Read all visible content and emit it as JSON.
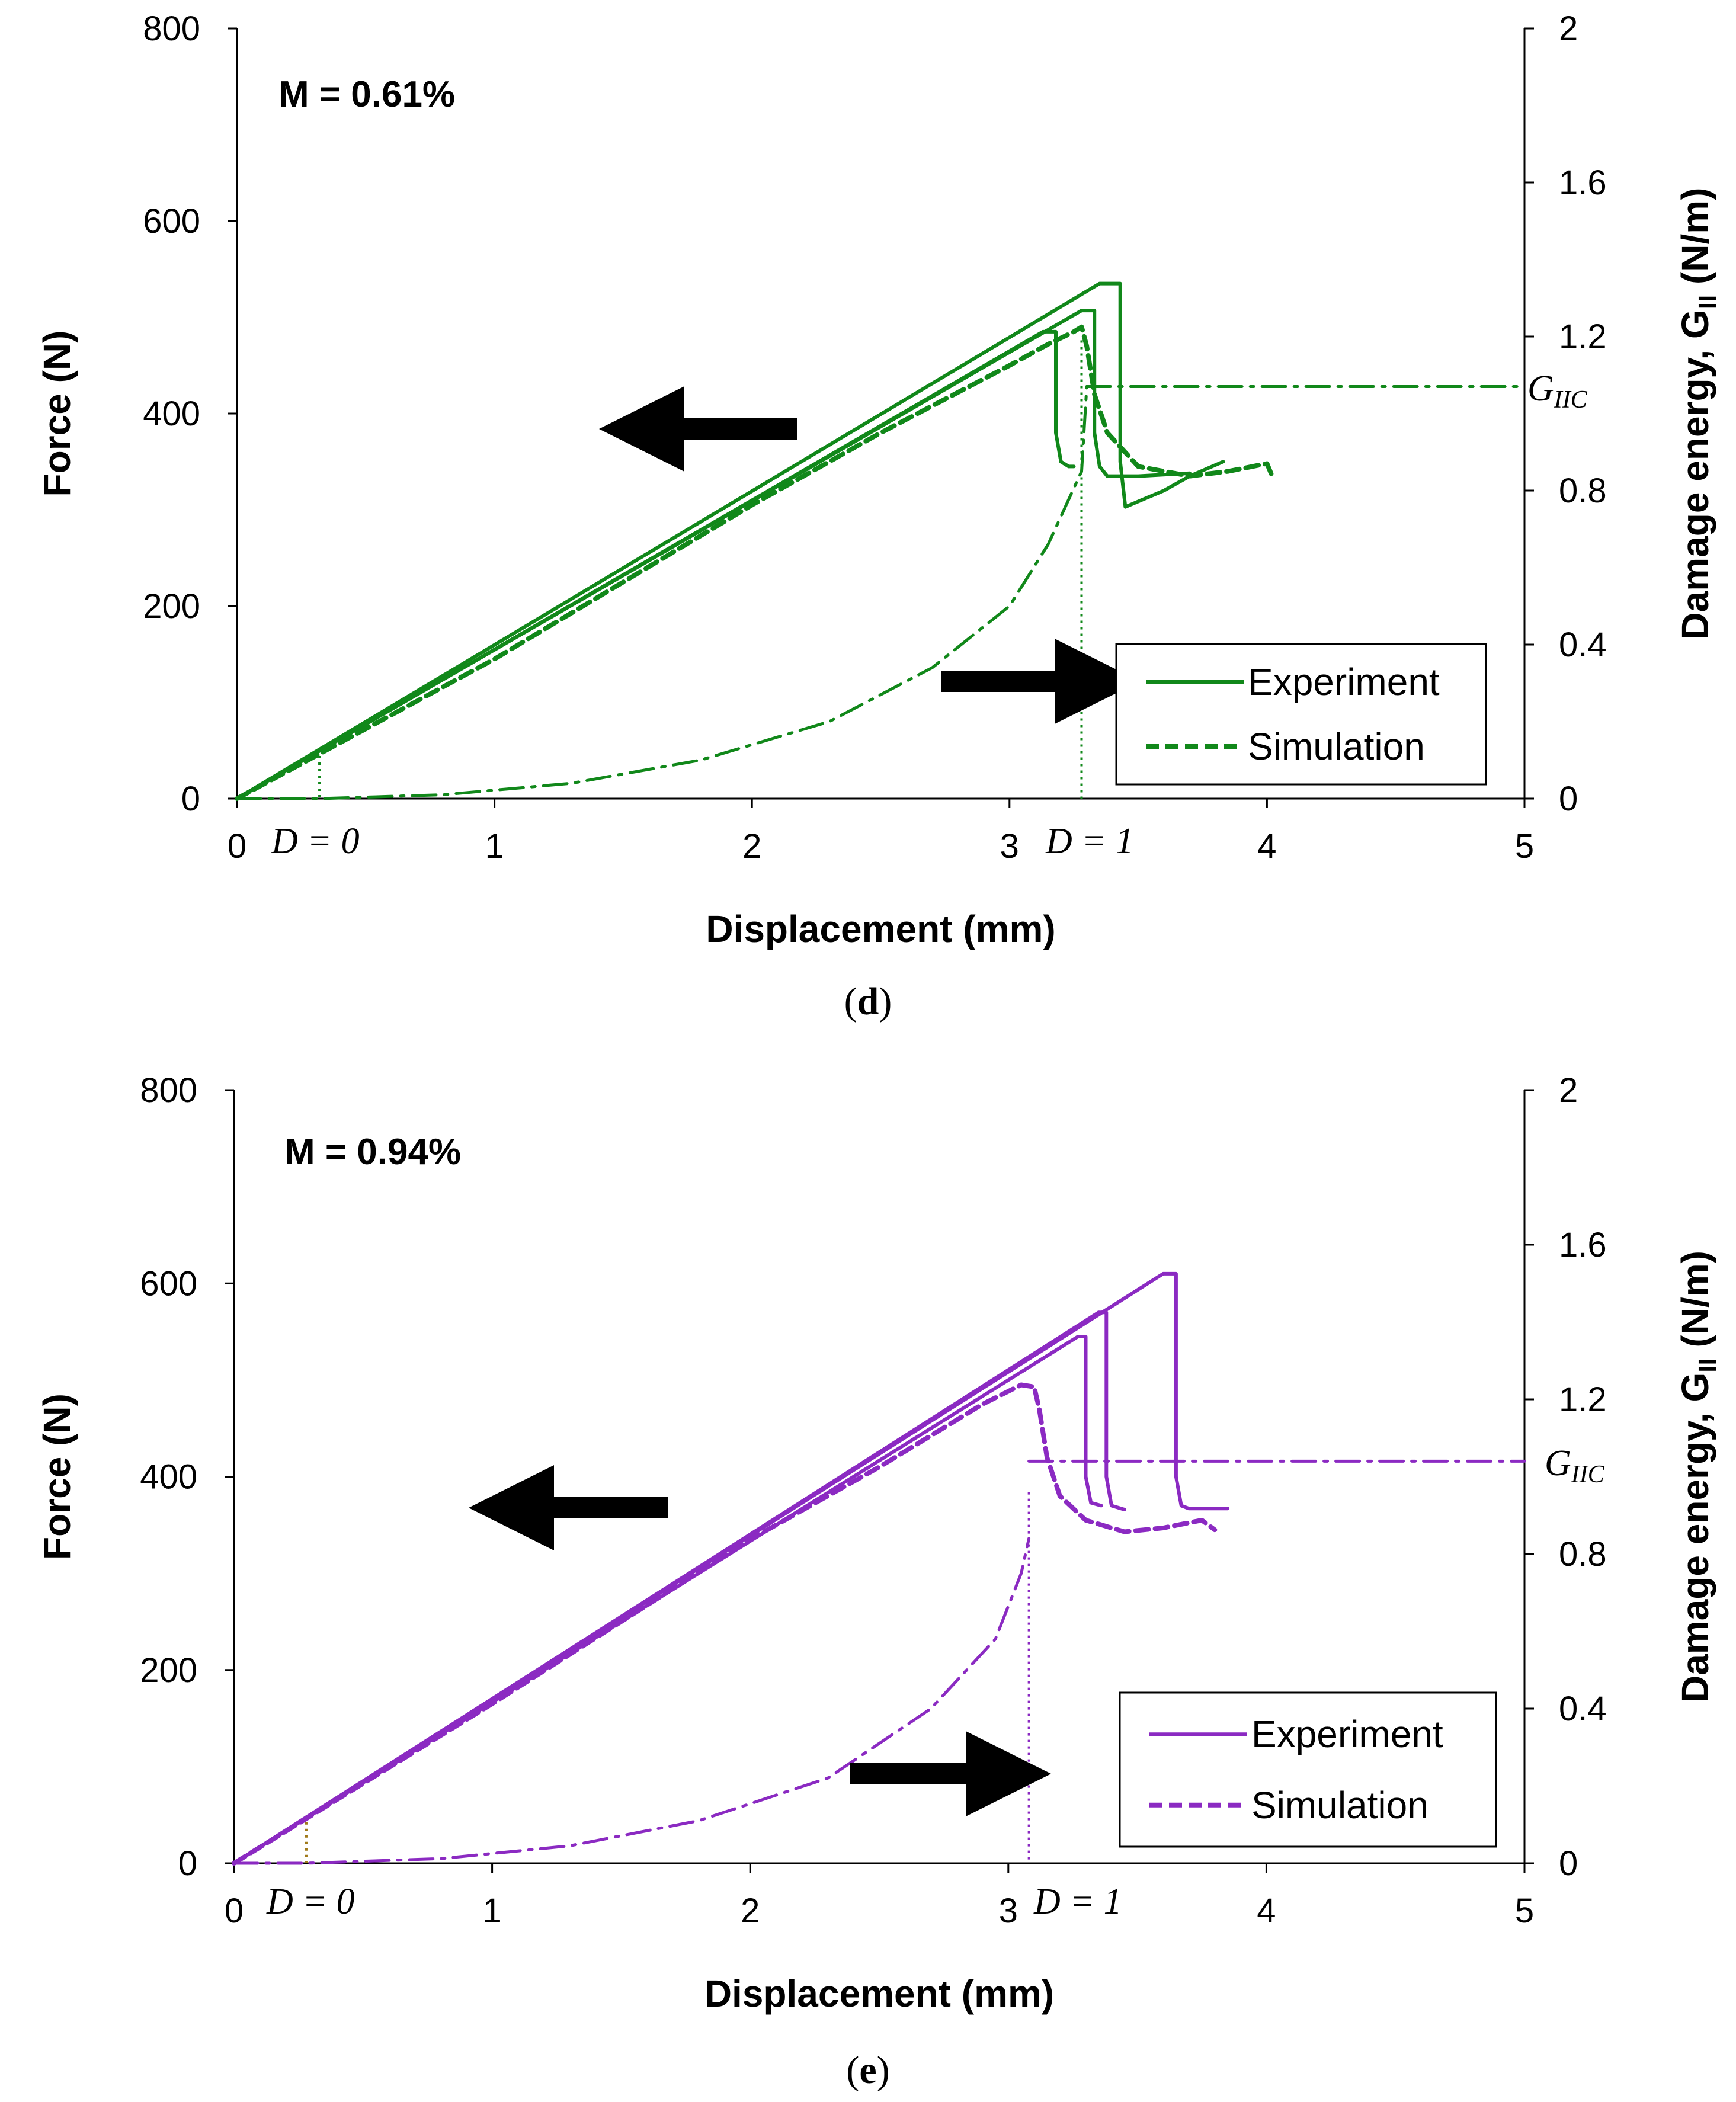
{
  "chart_data": [
    {
      "type": "line",
      "panel_caption": {
        "open": "(",
        "letter": "d",
        "close": ")"
      },
      "color": "#11881a",
      "annotation": "M = 0.61%",
      "xlabel": "Displacement (mm)",
      "ylabel_left": "Force (N)",
      "ylabel_right": {
        "text": "Damage energy, G",
        "subscript": "II",
        "unit": " (N/m)"
      },
      "xlim": [
        0,
        5
      ],
      "ylim_left": [
        0,
        800
      ],
      "ylim_right": [
        0,
        2
      ],
      "x_ticks": [
        "0",
        "1",
        "2",
        "3",
        "4",
        "5"
      ],
      "y_left_ticks": [
        "0",
        "200",
        "400",
        "600",
        "800"
      ],
      "y_right_ticks": [
        "0",
        "0.4",
        "0.8",
        "1.2",
        "1.6",
        "2"
      ],
      "legend": {
        "position": "bottom-right",
        "entries": [
          "Experiment",
          "Simulation"
        ]
      },
      "markers": {
        "d0": {
          "x": 0.32,
          "label": "D = 0"
        },
        "d1": {
          "x": 3.28,
          "label": "D = 1"
        },
        "gic": {
          "value": 1.07,
          "label": "G",
          "subscript": "IIC"
        }
      },
      "series": [
        {
          "name": "Experiment",
          "style": "solid",
          "axis": "left",
          "x": [
            0,
            3.35,
            3.43,
            3.43,
            3.45,
            3.6,
            3.7,
            3.83
          ],
          "y": [
            0,
            535,
            535,
            350,
            303,
            320,
            335,
            350
          ]
        },
        {
          "name": "Experiment",
          "style": "solid",
          "axis": "left",
          "x": [
            0,
            3.28,
            3.33,
            3.33,
            3.35,
            3.38,
            3.5,
            3.7
          ],
          "y": [
            0,
            507,
            507,
            380,
            345,
            335,
            335,
            338
          ]
        },
        {
          "name": "Experiment",
          "style": "solid",
          "axis": "left",
          "x": [
            0,
            3.13,
            3.18,
            3.18,
            3.2,
            3.23,
            3.25
          ],
          "y": [
            0,
            485,
            485,
            380,
            350,
            345,
            345
          ]
        },
        {
          "name": "Simulation",
          "style": "dashed",
          "axis": "left",
          "x": [
            0,
            1,
            2,
            2.5,
            3,
            3.15,
            3.25,
            3.28,
            3.3,
            3.33,
            3.38,
            3.5,
            3.7,
            3.85,
            4.0,
            4.02
          ],
          "y": [
            0,
            145,
            305,
            380,
            450,
            472,
            485,
            490,
            470,
            420,
            380,
            345,
            335,
            340,
            348,
            335
          ]
        },
        {
          "name": "Damage energy",
          "style": "dashdot",
          "axis": "right",
          "x": [
            0,
            0.32,
            0.8,
            1.3,
            1.8,
            2.3,
            2.7,
            3.0,
            3.15,
            3.28,
            3.3
          ],
          "y": [
            0,
            0,
            0.01,
            0.04,
            0.1,
            0.2,
            0.34,
            0.5,
            0.66,
            0.85,
            1.07
          ]
        },
        {
          "name": "G_IIC",
          "style": "dashdot",
          "axis": "right",
          "x": [
            3.3,
            5.0
          ],
          "y": [
            1.07,
            1.07
          ]
        }
      ]
    },
    {
      "type": "line",
      "panel_caption": {
        "open": "(",
        "letter": "e",
        "close": ")"
      },
      "color": "#8b2ac2",
      "annotation": "M = 0.94%",
      "xlabel": "Displacement (mm)",
      "ylabel_left": "Force (N)",
      "ylabel_right": {
        "text": "Damage energy, G",
        "subscript": "II",
        "unit": " (N/m)"
      },
      "xlim": [
        0,
        5
      ],
      "ylim_left": [
        0,
        800
      ],
      "ylim_right": [
        0,
        2
      ],
      "x_ticks": [
        "0",
        "1",
        "2",
        "3",
        "4",
        "5"
      ],
      "y_left_ticks": [
        "0",
        "200",
        "400",
        "600",
        "800"
      ],
      "y_right_ticks": [
        "0",
        "0.4",
        "0.8",
        "1.2",
        "1.6",
        "2"
      ],
      "legend": {
        "position": "bottom-right",
        "entries": [
          "Experiment",
          "Simulation"
        ]
      },
      "markers": {
        "d0": {
          "x": 0.28,
          "label": "D = 0"
        },
        "d1": {
          "x": 3.08,
          "label": "D = 1"
        },
        "gic": {
          "value": 1.04,
          "label": "G",
          "subscript": "IIC"
        }
      },
      "series": [
        {
          "name": "Experiment",
          "style": "solid",
          "axis": "left",
          "x": [
            0,
            3.6,
            3.65,
            3.65,
            3.67,
            3.7,
            3.85
          ],
          "y": [
            0,
            610,
            610,
            400,
            370,
            367,
            367
          ]
        },
        {
          "name": "Experiment",
          "style": "solid",
          "axis": "left",
          "x": [
            0,
            3.35,
            3.38,
            3.38,
            3.4,
            3.45
          ],
          "y": [
            0,
            570,
            570,
            400,
            370,
            366
          ]
        },
        {
          "name": "Experiment",
          "style": "solid",
          "axis": "left",
          "x": [
            0,
            3.27,
            3.3,
            3.3,
            3.32,
            3.36
          ],
          "y": [
            0,
            545,
            545,
            400,
            373,
            370
          ]
        },
        {
          "name": "Simulation",
          "style": "dashed",
          "axis": "left",
          "x": [
            0,
            1,
            2,
            2.5,
            2.9,
            3.05,
            3.1,
            3.12,
            3.15,
            3.2,
            3.3,
            3.45,
            3.6,
            3.75,
            3.8
          ],
          "y": [
            0,
            165,
            335,
            410,
            475,
            495,
            493,
            470,
            420,
            380,
            355,
            343,
            347,
            355,
            345
          ]
        },
        {
          "name": "Damage energy",
          "style": "dashdot",
          "axis": "right",
          "x": [
            0,
            0.28,
            0.8,
            1.3,
            1.8,
            2.3,
            2.7,
            2.95,
            3.05,
            3.08
          ],
          "y": [
            0,
            0,
            0.012,
            0.045,
            0.11,
            0.22,
            0.4,
            0.58,
            0.75,
            0.84
          ]
        },
        {
          "name": "G_IIC",
          "style": "dashdot",
          "axis": "right",
          "x": [
            3.08,
            5.0
          ],
          "y": [
            1.04,
            1.04
          ]
        }
      ]
    }
  ]
}
